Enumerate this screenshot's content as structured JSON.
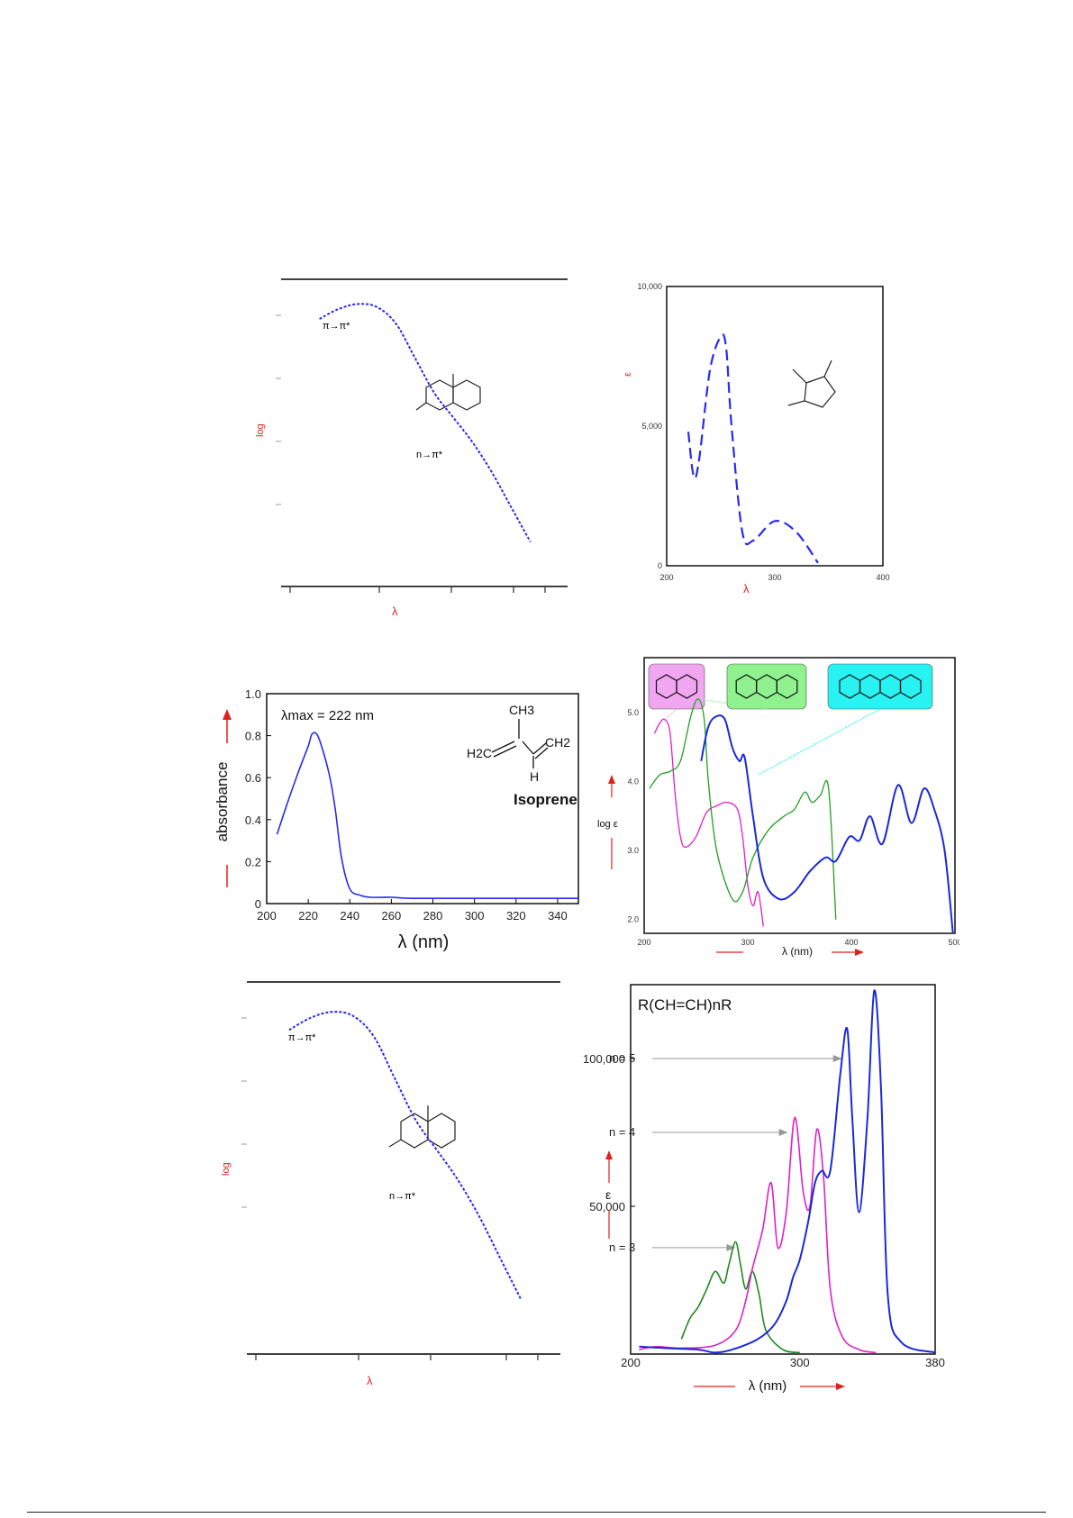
{
  "chart_data": [
    {
      "id": "p1",
      "type": "line",
      "note_labels": {
        "ylabel": "log",
        "xlabel": "λ",
        "ann_pi": "π→π*",
        "ann_n": "n→π*"
      },
      "x": [
        220,
        230,
        240,
        250,
        260,
        270,
        280,
        290,
        300,
        310,
        320,
        330
      ],
      "values": [
        4.2,
        4.3,
        4.35,
        4.32,
        4.15,
        3.8,
        3.45,
        3.2,
        2.95,
        2.65,
        2.3,
        1.95
      ],
      "color": "#2a2af0"
    },
    {
      "id": "p2",
      "type": "line",
      "note_labels": {
        "ylabel": "ε",
        "xlabel": "λ",
        "xticks": [
          "200",
          "300",
          "400"
        ],
        "yticks": [
          "0",
          "5,000",
          "10,000"
        ]
      },
      "x": [
        220,
        225,
        230,
        240,
        250,
        255,
        260,
        270,
        280,
        300,
        320,
        340
      ],
      "values": [
        4800,
        3200,
        3800,
        7000,
        8200,
        7800,
        5000,
        1200,
        900,
        1600,
        1200,
        100
      ],
      "ylim": [
        0,
        10000
      ],
      "xlim": [
        200,
        400
      ],
      "color": "#2a2af0"
    },
    {
      "id": "p3",
      "type": "line",
      "title": "Isoprene",
      "annotation": "λmax = 222 nm",
      "formula": {
        "top": "CH3",
        "left": "H2C",
        "right": "CH2",
        "bottom": "H"
      },
      "xlabel": "λ (nm)",
      "ylabel": "absorbance",
      "xticks": [
        200,
        220,
        240,
        260,
        280,
        300,
        320,
        340
      ],
      "yticks": [
        "0",
        "0.2",
        "0.4",
        "0.6",
        "0.8",
        "1.0"
      ],
      "xlim": [
        200,
        350
      ],
      "ylim": [
        0,
        1.0
      ],
      "x": [
        205,
        210,
        215,
        220,
        222,
        225,
        230,
        233,
        236,
        240,
        245,
        250,
        260,
        270,
        300,
        350
      ],
      "values": [
        0.33,
        0.48,
        0.62,
        0.75,
        0.81,
        0.79,
        0.62,
        0.45,
        0.22,
        0.07,
        0.04,
        0.03,
        0.03,
        0.025,
        0.025,
        0.025
      ],
      "color": "#2a2af0"
    },
    {
      "id": "p4",
      "type": "line",
      "xlabel": "λ (nm)",
      "ylabel": "log ε",
      "xticks": [
        200,
        300,
        400,
        500
      ],
      "yticks": [
        "2.0",
        "3.0",
        "4.0",
        "5.0"
      ],
      "xlim": [
        200,
        500
      ],
      "ylim": [
        1.8,
        5.8
      ],
      "series": [
        {
          "color": "#e020c8",
          "x": [
            210,
            215,
            220,
            225,
            230,
            235,
            240,
            250,
            260,
            270,
            280,
            290,
            295,
            300,
            305,
            310,
            315
          ],
          "values": [
            4.7,
            4.85,
            4.9,
            4.7,
            3.8,
            3.2,
            3.05,
            3.2,
            3.55,
            3.65,
            3.7,
            3.6,
            3.2,
            2.5,
            2.2,
            2.4,
            1.9
          ]
        },
        {
          "color": "#20a020",
          "x": [
            205,
            215,
            225,
            235,
            245,
            252,
            258,
            262,
            270,
            285,
            295,
            305,
            320,
            335,
            345,
            355,
            362,
            370,
            378,
            385
          ],
          "values": [
            3.9,
            4.1,
            4.15,
            4.3,
            4.95,
            5.2,
            4.9,
            4.0,
            3.0,
            2.3,
            2.4,
            2.9,
            3.3,
            3.5,
            3.6,
            3.85,
            3.7,
            3.8,
            3.9,
            2.0
          ]
        },
        {
          "color": "#1a2ad8",
          "x": [
            255,
            262,
            270,
            278,
            285,
            292,
            297,
            305,
            315,
            330,
            345,
            360,
            375,
            385,
            398,
            408,
            418,
            430,
            445,
            458,
            470,
            480,
            490,
            498
          ],
          "values": [
            4.3,
            4.8,
            4.95,
            4.9,
            4.5,
            4.3,
            4.35,
            3.5,
            2.6,
            2.3,
            2.4,
            2.7,
            2.9,
            2.85,
            3.2,
            3.15,
            3.5,
            3.1,
            3.95,
            3.4,
            3.9,
            3.6,
            3.0,
            1.8
          ]
        }
      ],
      "legend_molecules": [
        {
          "color": "#f0a6f0",
          "rings": 2
        },
        {
          "color": "#8ff28f",
          "rings": 3
        },
        {
          "color": "#28f2f2",
          "rings": 4
        }
      ]
    },
    {
      "id": "p5",
      "type": "line",
      "note_labels": {
        "ylabel": "log",
        "xlabel": "λ",
        "ann_pi": "π→π*",
        "ann_n": "n→π*"
      },
      "x": [
        220,
        230,
        240,
        250,
        260,
        270,
        280,
        290,
        300,
        310,
        320,
        330
      ],
      "values": [
        4.2,
        4.3,
        4.35,
        4.32,
        4.15,
        3.8,
        3.45,
        3.2,
        2.95,
        2.65,
        2.3,
        1.95
      ],
      "color": "#2a2af0"
    },
    {
      "id": "p6",
      "type": "line",
      "title": "R(CH=CH)nR",
      "xlabel": "λ (nm)",
      "ylabel": "ε",
      "xticks": [
        200,
        300,
        380
      ],
      "yticks": [
        "50,000",
        "100,000"
      ],
      "xlim": [
        200,
        380
      ],
      "ylim": [
        0,
        125000
      ],
      "annotations": [
        "n = 5",
        "n = 4",
        "n = 3"
      ],
      "series": [
        {
          "name": "n = 3",
          "color": "#1f8a1f",
          "x": [
            230,
            235,
            240,
            245,
            250,
            255,
            258,
            262,
            265,
            268,
            272,
            276,
            280,
            290,
            300
          ],
          "values": [
            5000,
            12000,
            16000,
            22000,
            28000,
            24000,
            30000,
            38000,
            30000,
            22000,
            28000,
            20000,
            8000,
            1500,
            500
          ]
        },
        {
          "name": "n = 4",
          "color": "#e020c8",
          "x": [
            205,
            215,
            230,
            250,
            262,
            268,
            272,
            278,
            283,
            287,
            292,
            297,
            302,
            306,
            310,
            314,
            318,
            325,
            335,
            345
          ],
          "values": [
            1500,
            2500,
            2000,
            3000,
            8000,
            18000,
            29000,
            42000,
            58000,
            36000,
            48000,
            80000,
            55000,
            50000,
            76000,
            60000,
            22000,
            6000,
            1500,
            500
          ]
        },
        {
          "name": "n = 5",
          "color": "#1a2ad8",
          "x": [
            205,
            220,
            240,
            250,
            260,
            275,
            285,
            292,
            296,
            300,
            305,
            309,
            313,
            318,
            324,
            328,
            331,
            335,
            340,
            344,
            348,
            352,
            360,
            380
          ],
          "values": [
            2500,
            2000,
            1500,
            500,
            1500,
            5000,
            10000,
            18000,
            26000,
            32000,
            45000,
            58000,
            62000,
            62000,
            95000,
            110000,
            80000,
            48000,
            80000,
            123000,
            90000,
            20000,
            4000,
            500
          ]
        }
      ]
    }
  ]
}
